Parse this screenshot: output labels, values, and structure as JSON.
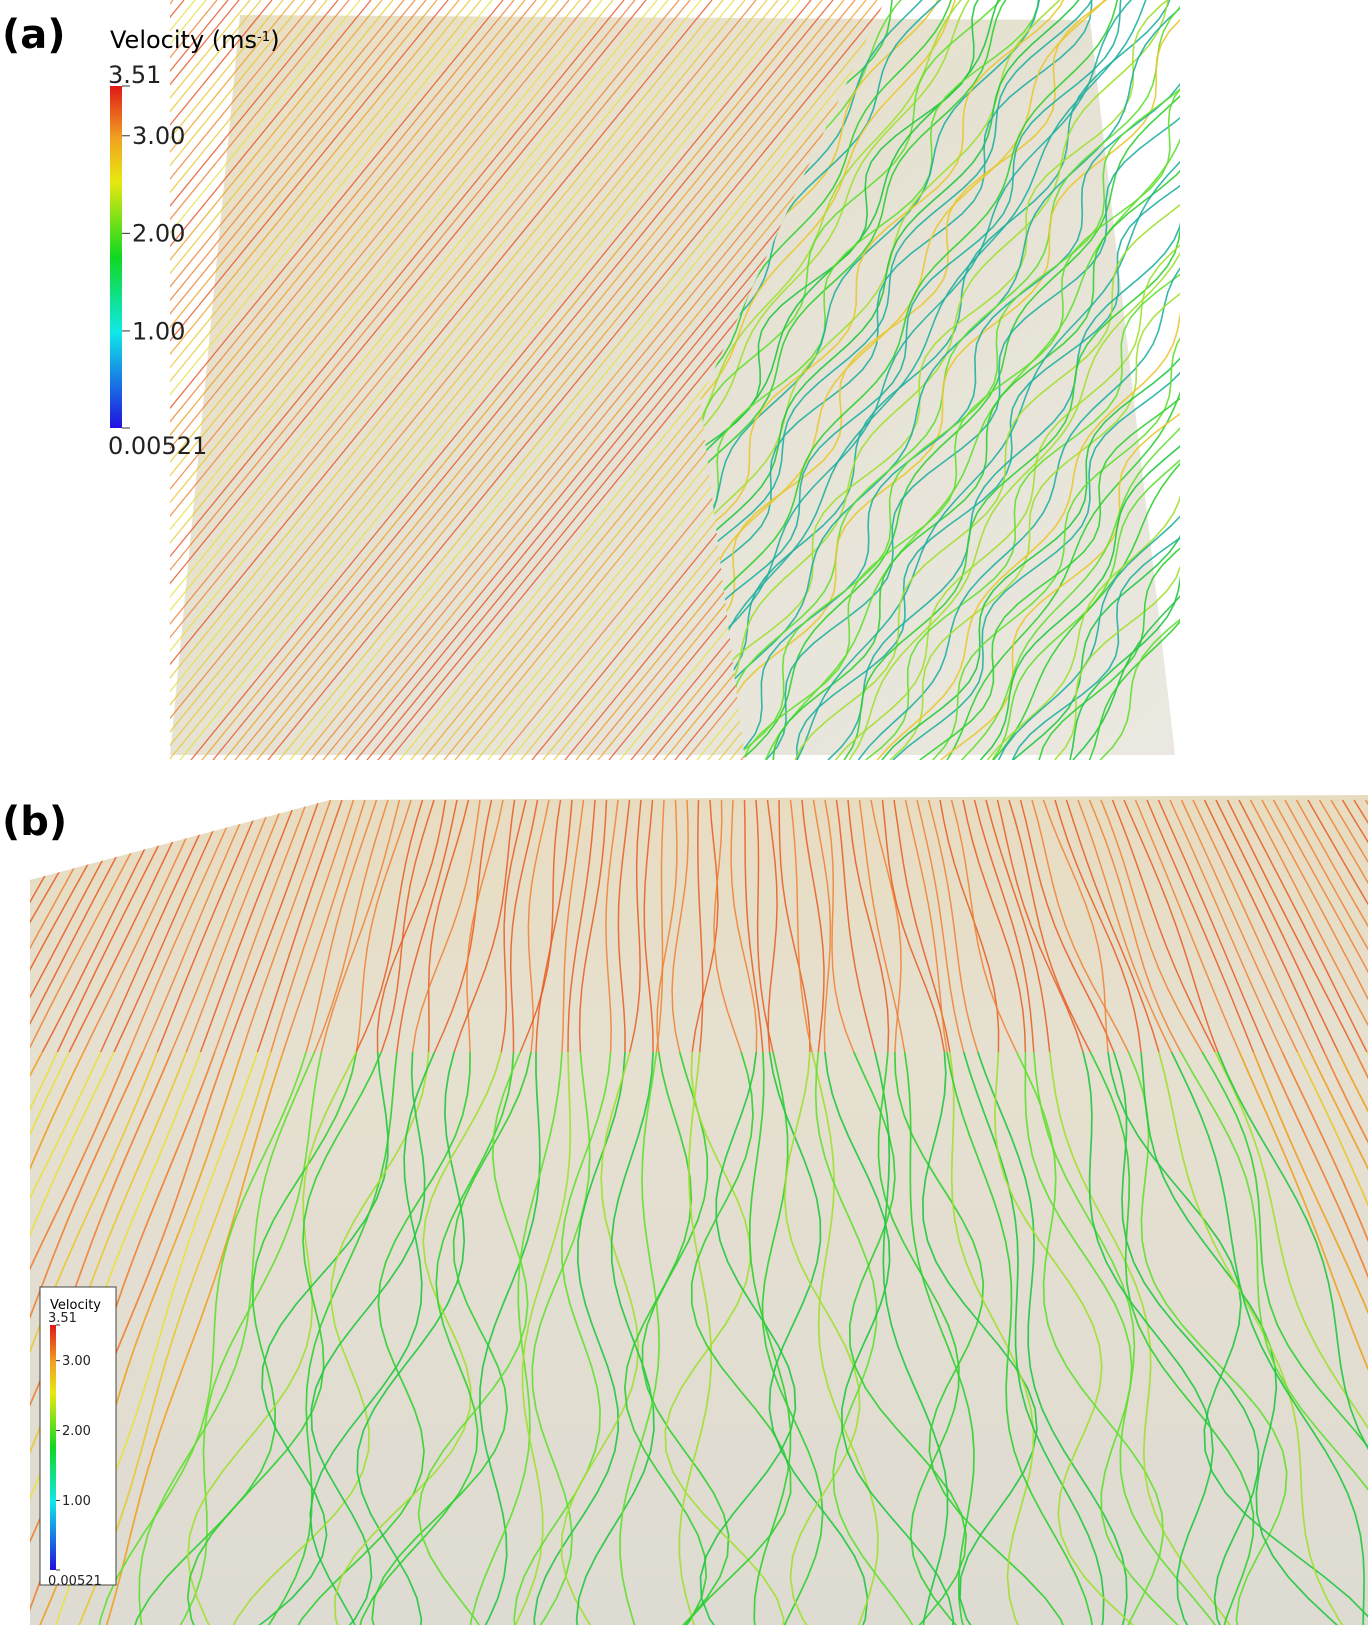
{
  "panels": [
    {
      "label": "(a)",
      "colorbar": {
        "title": [
          "Velocity (ms",
          "-1",
          ")"
        ],
        "clim": [
          0.00521,
          3.51
        ],
        "ticks": [
          0.00521,
          {
            "value": 1,
            "label": "1.00"
          },
          {
            "value": 2,
            "label": "2.00"
          },
          {
            "value": 3,
            "label": "3.00"
          },
          3.51
        ]
      }
    },
    {
      "label": "(b)",
      "colorbar": {
        "title": "Velocity",
        "clim": [
          0.00521,
          3.51
        ],
        "ticks": [
          0.00521,
          {
            "value": 1,
            "label": "1.00"
          },
          {
            "value": 2,
            "label": "2.00"
          },
          {
            "value": 3,
            "label": "3.00"
          },
          3.51
        ]
      }
    }
  ]
}
